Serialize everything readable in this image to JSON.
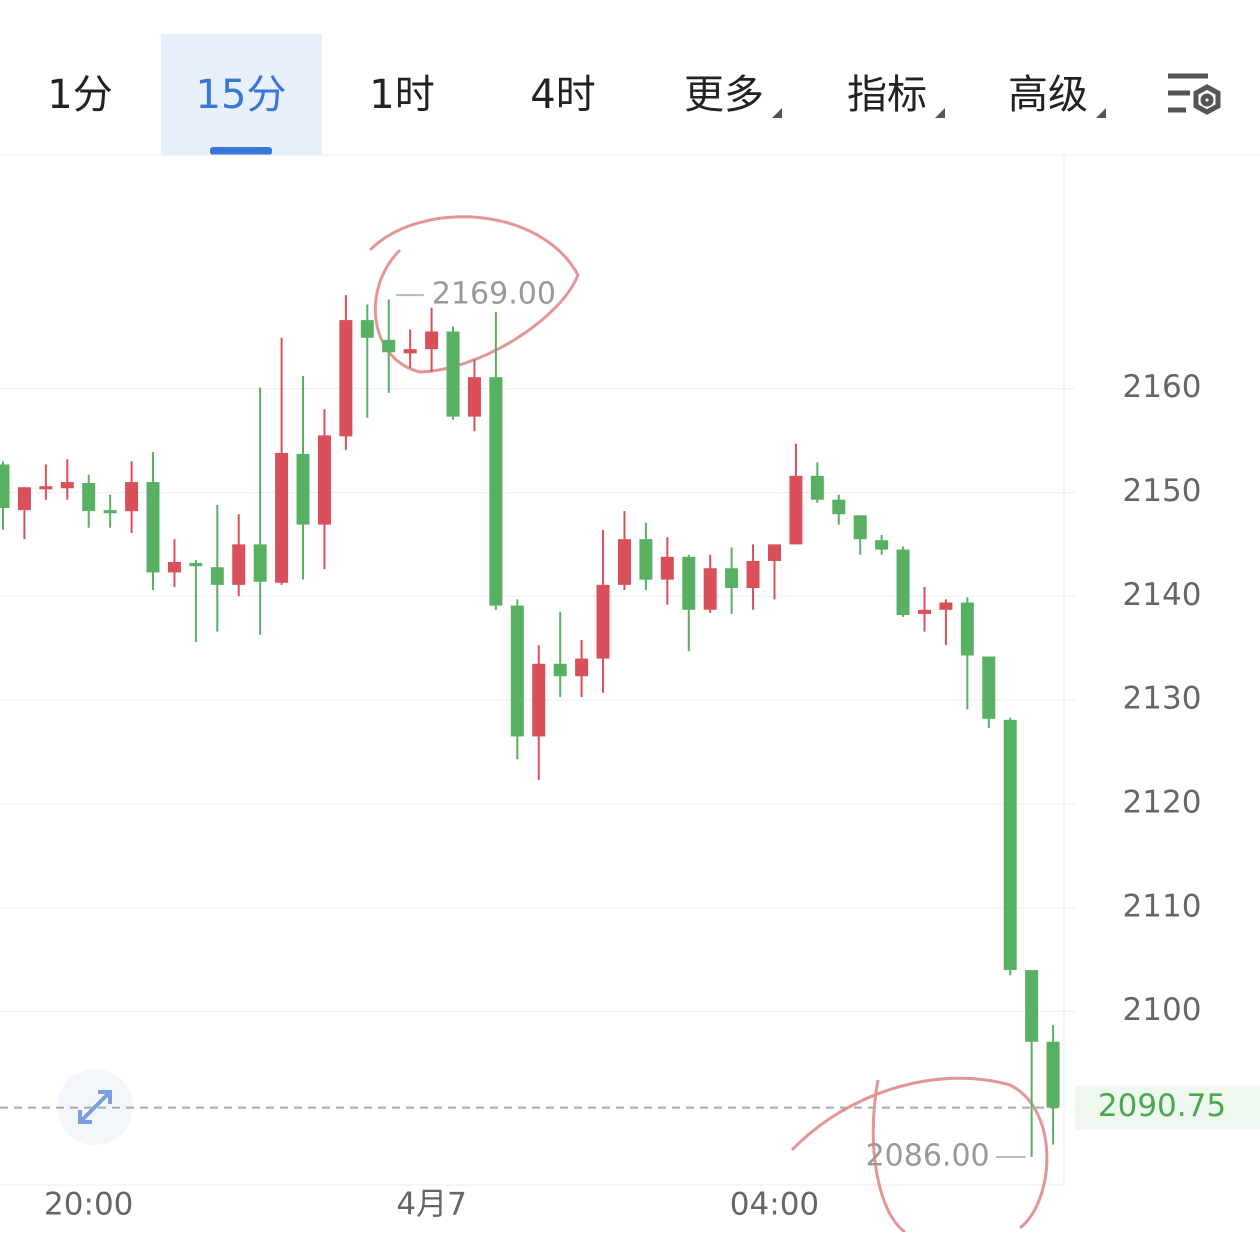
{
  "toolbar": {
    "tabs": [
      "1分",
      "15分",
      "1时",
      "4时",
      "更多",
      "指标",
      "高级"
    ],
    "selected": 1
  },
  "chart_data": {
    "type": "candlestick",
    "categories": [
      "20:00",
      "4月7",
      "04:00"
    ],
    "x": [
      null,
      null,
      null,
      null,
      "20:00",
      null,
      null,
      null,
      null,
      null,
      null,
      null,
      null,
      null,
      null,
      null,
      null,
      null,
      null,
      null,
      "4月7",
      null,
      null,
      null,
      null,
      null,
      null,
      null,
      null,
      null,
      null,
      null,
      null,
      null,
      null,
      null,
      "04:00",
      null,
      null,
      null,
      null,
      null,
      null,
      null,
      null,
      null,
      null,
      null,
      null,
      null
    ],
    "open": [
      2152.7,
      2148.3,
      2150.3,
      2150.4,
      2150.9,
      2148.3,
      2148.2,
      2151.0,
      2142.3,
      2143.2,
      2142.8,
      2141.1,
      2145.0,
      2141.3,
      2153.7,
      2146.9,
      2155.4,
      2166.6,
      2164.7,
      2163.4,
      2163.8,
      2165.5,
      2157.3,
      2161.1,
      2139.1,
      2126.5,
      2133.5,
      2132.3,
      2134.0,
      2141.1,
      2145.5,
      2141.6,
      2143.8,
      2138.7,
      2142.7,
      2140.8,
      2143.4,
      2145.0,
      2151.6,
      2149.3,
      2147.8,
      2145.4,
      2144.5,
      2138.3,
      2138.7,
      2139.4,
      2134.2,
      2128.1,
      2104.0,
      2097.1
    ],
    "high": [
      2153.0,
      2150.5,
      2152.7,
      2153.2,
      2151.7,
      2149.8,
      2153.0,
      2153.9,
      2145.5,
      2143.5,
      2148.8,
      2147.9,
      2160.1,
      2164.9,
      2161.2,
      2158.0,
      2169.0,
      2168.1,
      2168.6,
      2165.7,
      2167.8,
      2166.0,
      2162.8,
      2167.4,
      2139.7,
      2135.3,
      2138.5,
      2135.8,
      2146.4,
      2148.2,
      2147.1,
      2145.7,
      2144.0,
      2144.0,
      2144.7,
      2145.0,
      2145.0,
      2154.7,
      2152.9,
      2149.8,
      2147.8,
      2145.9,
      2144.8,
      2140.9,
      2139.7,
      2139.9,
      2134.2,
      2128.3,
      2104.0,
      2098.7
    ],
    "low": [
      2146.4,
      2145.5,
      2149.3,
      2149.3,
      2146.6,
      2146.6,
      2146.1,
      2140.6,
      2140.9,
      2135.6,
      2136.6,
      2140.0,
      2136.3,
      2141.1,
      2141.6,
      2142.6,
      2154.1,
      2157.2,
      2159.6,
      2162.0,
      2161.6,
      2157.0,
      2155.9,
      2138.7,
      2124.3,
      2122.3,
      2130.3,
      2130.3,
      2130.7,
      2140.6,
      2140.6,
      2139.2,
      2134.7,
      2138.4,
      2138.3,
      2138.7,
      2139.7,
      2145.0,
      2149.0,
      2146.9,
      2144.0,
      2144.0,
      2138.0,
      2136.6,
      2135.3,
      2129.1,
      2127.3,
      2103.5,
      2086.0,
      2087.2
    ],
    "close": [
      2148.5,
      2150.5,
      2150.6,
      2151.0,
      2148.2,
      2148.0,
      2151.0,
      2142.3,
      2143.3,
      2142.9,
      2141.1,
      2145.0,
      2141.4,
      2153.8,
      2146.9,
      2155.5,
      2166.6,
      2164.9,
      2163.5,
      2163.8,
      2165.5,
      2157.3,
      2161.1,
      2139.1,
      2126.5,
      2133.5,
      2132.3,
      2134.0,
      2141.1,
      2145.5,
      2141.6,
      2143.8,
      2138.7,
      2142.7,
      2140.8,
      2143.4,
      2145.0,
      2151.6,
      2149.3,
      2147.9,
      2145.5,
      2144.5,
      2138.2,
      2138.7,
      2139.4,
      2134.3,
      2128.2,
      2104.0,
      2097.1,
      2090.75
    ],
    "up_color": "#d9505a",
    "down_color": "#58b162",
    "ylim": [
      2083.3,
      2182.5
    ],
    "yticks": [
      2100,
      2110,
      2120,
      2130,
      2140,
      2150,
      2160
    ],
    "grid": true,
    "last_price": 2090.75,
    "high_label": {
      "value": 2169,
      "label": "2169.00"
    },
    "low_label": {
      "value": 2086,
      "label": "2086.00"
    }
  }
}
